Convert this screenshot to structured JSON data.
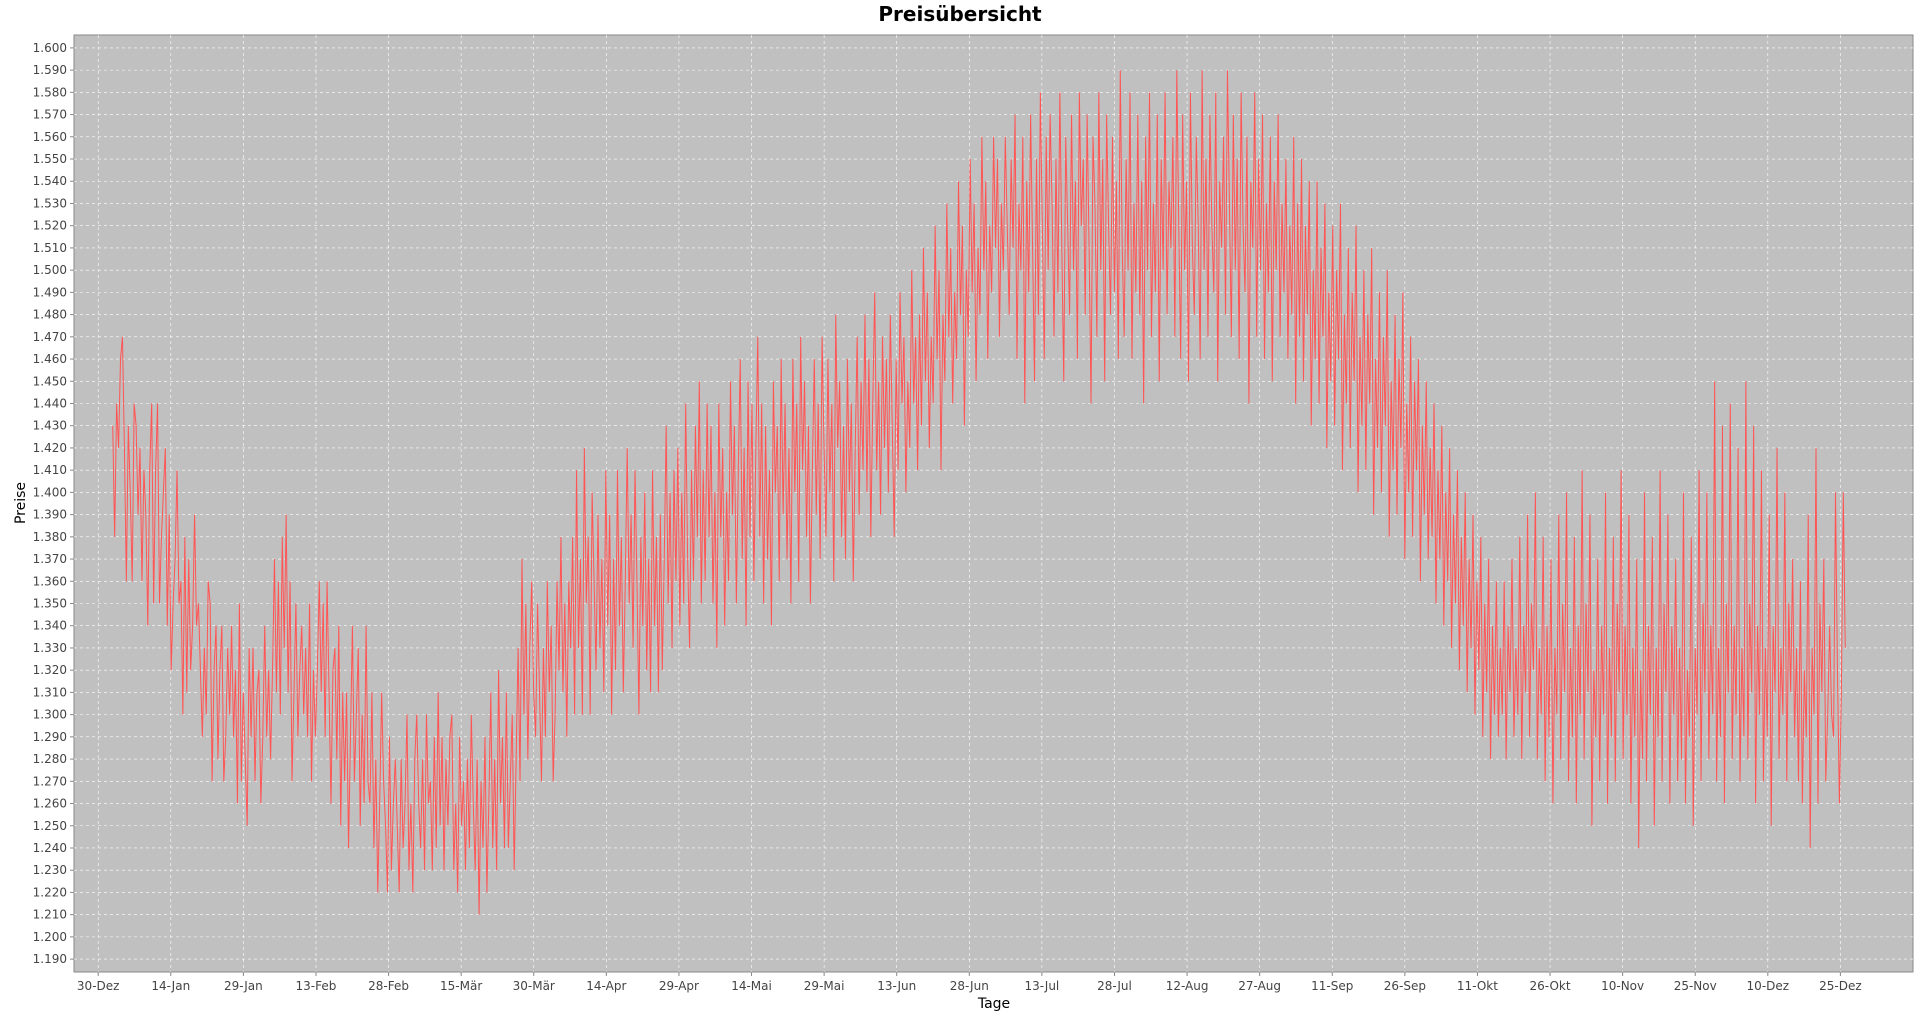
{
  "chart_data": {
    "type": "line",
    "title": "Preisübersicht",
    "xlabel": "Tage",
    "ylabel": "Preise",
    "ylim": [
      1.19,
      1.6
    ],
    "grid": true,
    "legend": "none",
    "colors": {
      "plot_background": "#c0c0c0",
      "series_line": "#ff5555",
      "gridline": "#ffffff",
      "tick_text": "#444444"
    },
    "y_ticks": [
      "1.190",
      "1.200",
      "1.210",
      "1.220",
      "1.230",
      "1.240",
      "1.250",
      "1.260",
      "1.270",
      "1.280",
      "1.290",
      "1.300",
      "1.310",
      "1.320",
      "1.330",
      "1.340",
      "1.350",
      "1.360",
      "1.370",
      "1.380",
      "1.390",
      "1.400",
      "1.410",
      "1.420",
      "1.430",
      "1.440",
      "1.450",
      "1.460",
      "1.470",
      "1.480",
      "1.490",
      "1.500",
      "1.510",
      "1.520",
      "1.530",
      "1.540",
      "1.550",
      "1.560",
      "1.570",
      "1.580",
      "1.590",
      "1.600"
    ],
    "x_ticks": [
      "30-Dez",
      "14-Jan",
      "29-Jan",
      "13-Feb",
      "28-Feb",
      "15-Mär",
      "30-Mär",
      "14-Apr",
      "29-Apr",
      "14-Mai",
      "29-Mai",
      "13-Jun",
      "28-Jun",
      "13-Jul",
      "28-Jul",
      "12-Aug",
      "27-Aug",
      "11-Sep",
      "26-Sep",
      "11-Okt",
      "26-Okt",
      "10-Nov",
      "25-Nov",
      "10-Dez",
      "25-Dez"
    ],
    "x_tick_day_index": [
      0,
      15,
      30,
      45,
      60,
      75,
      90,
      105,
      120,
      135,
      150,
      165,
      180,
      195,
      210,
      225,
      240,
      255,
      270,
      285,
      300,
      315,
      330,
      345,
      360
    ],
    "x_range_days": [
      -5,
      375
    ],
    "series": [
      {
        "x_start": "2 Jan",
        "x_step": "2 hours",
        "points_per_day": 12,
        "values": [
          1.43,
          1.38,
          1.44,
          1.42,
          1.46,
          1.47,
          1.42,
          1.36,
          1.43,
          1.4,
          1.36,
          1.44,
          1.43,
          1.39,
          1.42,
          1.36,
          1.41,
          1.39,
          1.34,
          1.41,
          1.44,
          1.35,
          1.41,
          1.44,
          1.35,
          1.38,
          1.4,
          1.42,
          1.34,
          1.39,
          1.32,
          1.35,
          1.37,
          1.41,
          1.35,
          1.36,
          1.3,
          1.38,
          1.31,
          1.37,
          1.32,
          1.34,
          1.39,
          1.34,
          1.35,
          1.32,
          1.29,
          1.33,
          1.3,
          1.36,
          1.35,
          1.27,
          1.32,
          1.34,
          1.28,
          1.32,
          1.34,
          1.27,
          1.29,
          1.33,
          1.3,
          1.34,
          1.29,
          1.32,
          1.26,
          1.35,
          1.27,
          1.31,
          1.28,
          1.25,
          1.33,
          1.29,
          1.33,
          1.27,
          1.31,
          1.32,
          1.26,
          1.29,
          1.34,
          1.29,
          1.32,
          1.28,
          1.32,
          1.37,
          1.31,
          1.36,
          1.3,
          1.38,
          1.33,
          1.39,
          1.31,
          1.36,
          1.27,
          1.31,
          1.35,
          1.29,
          1.32,
          1.34,
          1.3,
          1.33,
          1.29,
          1.35,
          1.27,
          1.32,
          1.29,
          1.32,
          1.36,
          1.31,
          1.35,
          1.29,
          1.36,
          1.31,
          1.26,
          1.32,
          1.33,
          1.28,
          1.34,
          1.25,
          1.31,
          1.27,
          1.31,
          1.24,
          1.29,
          1.34,
          1.27,
          1.3,
          1.33,
          1.25,
          1.3,
          1.26,
          1.34,
          1.27,
          1.26,
          1.31,
          1.24,
          1.28,
          1.22,
          1.26,
          1.31,
          1.27,
          1.25,
          1.22,
          1.29,
          1.23,
          1.26,
          1.28,
          1.25,
          1.22,
          1.28,
          1.24,
          1.26,
          1.3,
          1.23,
          1.26,
          1.22,
          1.28,
          1.3,
          1.26,
          1.24,
          1.28,
          1.23,
          1.3,
          1.26,
          1.27,
          1.23,
          1.29,
          1.24,
          1.31,
          1.25,
          1.29,
          1.23,
          1.28,
          1.25,
          1.29,
          1.3,
          1.23,
          1.26,
          1.22,
          1.29,
          1.25,
          1.27,
          1.23,
          1.28,
          1.24,
          1.3,
          1.26,
          1.23,
          1.28,
          1.21,
          1.27,
          1.24,
          1.29,
          1.22,
          1.26,
          1.31,
          1.24,
          1.28,
          1.23,
          1.32,
          1.26,
          1.29,
          1.24,
          1.31,
          1.24,
          1.27,
          1.3,
          1.23,
          1.28,
          1.33,
          1.27,
          1.37,
          1.3,
          1.35,
          1.28,
          1.33,
          1.36,
          1.31,
          1.29,
          1.35,
          1.31,
          1.27,
          1.33,
          1.29,
          1.36,
          1.31,
          1.34,
          1.27,
          1.3,
          1.36,
          1.32,
          1.38,
          1.31,
          1.35,
          1.29,
          1.36,
          1.33,
          1.38,
          1.3,
          1.41,
          1.33,
          1.37,
          1.3,
          1.42,
          1.35,
          1.38,
          1.3,
          1.4,
          1.36,
          1.32,
          1.39,
          1.33,
          1.37,
          1.31,
          1.41,
          1.34,
          1.39,
          1.3,
          1.37,
          1.32,
          1.41,
          1.34,
          1.38,
          1.31,
          1.36,
          1.42,
          1.35,
          1.39,
          1.33,
          1.41,
          1.36,
          1.3,
          1.38,
          1.34,
          1.4,
          1.32,
          1.37,
          1.31,
          1.41,
          1.34,
          1.38,
          1.31,
          1.39,
          1.32,
          1.37,
          1.43,
          1.35,
          1.4,
          1.33,
          1.41,
          1.36,
          1.42,
          1.34,
          1.4,
          1.35,
          1.44,
          1.37,
          1.33,
          1.41,
          1.36,
          1.43,
          1.38,
          1.45,
          1.35,
          1.41,
          1.36,
          1.44,
          1.38,
          1.43,
          1.35,
          1.4,
          1.33,
          1.44,
          1.38,
          1.42,
          1.34,
          1.4,
          1.36,
          1.45,
          1.39,
          1.43,
          1.35,
          1.41,
          1.46,
          1.37,
          1.42,
          1.34,
          1.45,
          1.38,
          1.44,
          1.36,
          1.42,
          1.47,
          1.38,
          1.44,
          1.35,
          1.43,
          1.37,
          1.41,
          1.34,
          1.45,
          1.4,
          1.43,
          1.36,
          1.46,
          1.39,
          1.44,
          1.37,
          1.42,
          1.35,
          1.46,
          1.4,
          1.44,
          1.36,
          1.47,
          1.41,
          1.45,
          1.38,
          1.43,
          1.35,
          1.41,
          1.46,
          1.39,
          1.44,
          1.37,
          1.47,
          1.42,
          1.38,
          1.46,
          1.4,
          1.44,
          1.36,
          1.48,
          1.42,
          1.45,
          1.38,
          1.43,
          1.37,
          1.46,
          1.4,
          1.44,
          1.36,
          1.42,
          1.47,
          1.39,
          1.45,
          1.41,
          1.48,
          1.4,
          1.46,
          1.38,
          1.44,
          1.49,
          1.41,
          1.45,
          1.39,
          1.47,
          1.42,
          1.46,
          1.4,
          1.48,
          1.43,
          1.38,
          1.46,
          1.41,
          1.49,
          1.44,
          1.47,
          1.4,
          1.45,
          1.42,
          1.5,
          1.44,
          1.47,
          1.41,
          1.48,
          1.43,
          1.51,
          1.45,
          1.49,
          1.42,
          1.47,
          1.44,
          1.52,
          1.46,
          1.5,
          1.41,
          1.48,
          1.45,
          1.53,
          1.47,
          1.51,
          1.44,
          1.49,
          1.46,
          1.54,
          1.48,
          1.52,
          1.43,
          1.5,
          1.47,
          1.55,
          1.49,
          1.53,
          1.45,
          1.51,
          1.48,
          1.56,
          1.5,
          1.54,
          1.46,
          1.52,
          1.49,
          1.56,
          1.51,
          1.55,
          1.47,
          1.53,
          1.5,
          1.56,
          1.52,
          1.48,
          1.55,
          1.51,
          1.57,
          1.46,
          1.53,
          1.5,
          1.56,
          1.44,
          1.54,
          1.49,
          1.57,
          1.51,
          1.45,
          1.55,
          1.48,
          1.58,
          1.52,
          1.46,
          1.56,
          1.5,
          1.57,
          1.53,
          1.47,
          1.55,
          1.49,
          1.58,
          1.51,
          1.45,
          1.56,
          1.52,
          1.48,
          1.57,
          1.5,
          1.54,
          1.46,
          1.58,
          1.52,
          1.55,
          1.48,
          1.57,
          1.51,
          1.44,
          1.56,
          1.53,
          1.47,
          1.58,
          1.5,
          1.55,
          1.45,
          1.57,
          1.52,
          1.48,
          1.56,
          1.49,
          1.54,
          1.46,
          1.59,
          1.51,
          1.47,
          1.55,
          1.5,
          1.58,
          1.46,
          1.53,
          1.49,
          1.57,
          1.48,
          1.54,
          1.44,
          1.56,
          1.5,
          1.58,
          1.47,
          1.53,
          1.49,
          1.57,
          1.45,
          1.55,
          1.5,
          1.58,
          1.48,
          1.54,
          1.51,
          1.56,
          1.47,
          1.59,
          1.52,
          1.46,
          1.57,
          1.5,
          1.54,
          1.45,
          1.58,
          1.51,
          1.48,
          1.56,
          1.52,
          1.46,
          1.59,
          1.5,
          1.55,
          1.47,
          1.57,
          1.52,
          1.49,
          1.58,
          1.45,
          1.54,
          1.51,
          1.56,
          1.48,
          1.59,
          1.53,
          1.47,
          1.57,
          1.5,
          1.55,
          1.46,
          1.58,
          1.52,
          1.49,
          1.56,
          1.44,
          1.54,
          1.51,
          1.58,
          1.47,
          1.55,
          1.5,
          1.57,
          1.46,
          1.53,
          1.49,
          1.56,
          1.45,
          1.54,
          1.5,
          1.57,
          1.47,
          1.53,
          1.49,
          1.55,
          1.46,
          1.52,
          1.48,
          1.56,
          1.44,
          1.53,
          1.47,
          1.55,
          1.45,
          1.52,
          1.48,
          1.54,
          1.43,
          1.5,
          1.46,
          1.54,
          1.44,
          1.51,
          1.47,
          1.53,
          1.42,
          1.49,
          1.45,
          1.52,
          1.43,
          1.5,
          1.46,
          1.53,
          1.41,
          1.48,
          1.44,
          1.51,
          1.42,
          1.49,
          1.45,
          1.52,
          1.4,
          1.47,
          1.43,
          1.5,
          1.41,
          1.48,
          1.44,
          1.51,
          1.39,
          1.46,
          1.42,
          1.49,
          1.4,
          1.47,
          1.43,
          1.5,
          1.38,
          1.45,
          1.41,
          1.48,
          1.39,
          1.46,
          1.42,
          1.49,
          1.37,
          1.44,
          1.4,
          1.47,
          1.38,
          1.45,
          1.41,
          1.46,
          1.36,
          1.43,
          1.39,
          1.45,
          1.37,
          1.42,
          1.38,
          1.44,
          1.35,
          1.41,
          1.37,
          1.43,
          1.34,
          1.4,
          1.36,
          1.42,
          1.33,
          1.39,
          1.35,
          1.41,
          1.32,
          1.38,
          1.34,
          1.4,
          1.31,
          1.37,
          1.33,
          1.39,
          1.3,
          1.36,
          1.32,
          1.38,
          1.29,
          1.35,
          1.31,
          1.37,
          1.28,
          1.34,
          1.3,
          1.36,
          1.29,
          1.33,
          1.3,
          1.36,
          1.28,
          1.34,
          1.31,
          1.37,
          1.29,
          1.33,
          1.3,
          1.38,
          1.28,
          1.34,
          1.31,
          1.39,
          1.29,
          1.35,
          1.32,
          1.4,
          1.28,
          1.33,
          1.3,
          1.38,
          1.27,
          1.34,
          1.29,
          1.37,
          1.26,
          1.33,
          1.3,
          1.39,
          1.28,
          1.35,
          1.31,
          1.4,
          1.27,
          1.33,
          1.29,
          1.38,
          1.26,
          1.34,
          1.3,
          1.41,
          1.28,
          1.35,
          1.31,
          1.39,
          1.25,
          1.32,
          1.29,
          1.37,
          1.27,
          1.34,
          1.3,
          1.4,
          1.26,
          1.33,
          1.29,
          1.38,
          1.27,
          1.35,
          1.31,
          1.41,
          1.28,
          1.34,
          1.3,
          1.39,
          1.26,
          1.33,
          1.29,
          1.37,
          1.24,
          1.32,
          1.28,
          1.4,
          1.27,
          1.34,
          1.3,
          1.38,
          1.25,
          1.33,
          1.29,
          1.41,
          1.27,
          1.35,
          1.31,
          1.39,
          1.26,
          1.34,
          1.3,
          1.37,
          1.27,
          1.33,
          1.28,
          1.4,
          1.26,
          1.32,
          1.29,
          1.38,
          1.25,
          1.33,
          1.3,
          1.41,
          1.27,
          1.35,
          1.31,
          1.4,
          1.28,
          1.34,
          1.3,
          1.45,
          1.27,
          1.33,
          1.29,
          1.43,
          1.26,
          1.35,
          1.31,
          1.44,
          1.28,
          1.34,
          1.3,
          1.42,
          1.27,
          1.33,
          1.29,
          1.45,
          1.28,
          1.35,
          1.31,
          1.43,
          1.26,
          1.34,
          1.3,
          1.41,
          1.27,
          1.33,
          1.29,
          1.39,
          1.25,
          1.34,
          1.31,
          1.42,
          1.28,
          1.33,
          1.3,
          1.4,
          1.27,
          1.35,
          1.31,
          1.37,
          1.29,
          1.33,
          1.27,
          1.36,
          1.26,
          1.32,
          1.29,
          1.39,
          1.24,
          1.33,
          1.3,
          1.42,
          1.26,
          1.35,
          1.31,
          1.37,
          1.27,
          1.3,
          1.34,
          1.3,
          1.29,
          1.4,
          1.32,
          1.26,
          1.31,
          1.4,
          1.33
        ]
      }
    ]
  }
}
